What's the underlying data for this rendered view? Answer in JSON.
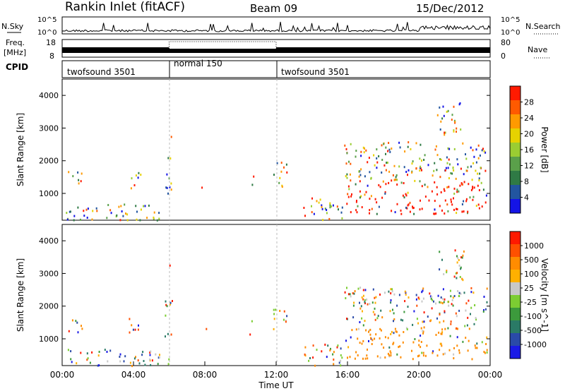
{
  "header": {
    "station": "Rankin Inlet (fitACF)",
    "beam": "Beam 09",
    "date": "15/Dec/2012"
  },
  "colors": {
    "power_scale": [
      "#1414e6",
      "#2255a0",
      "#2f7a45",
      "#5aa04a",
      "#9acd32",
      "#e6d200",
      "#ff9a00",
      "#ff5a00",
      "#ff1a00"
    ],
    "velocity_scale": [
      "#1a1ae6",
      "#2a4aa8",
      "#2a7a66",
      "#3c9a3c",
      "#7ccd32",
      "#c8c8c8",
      "#ffb000",
      "#ff8c00",
      "#ff5000",
      "#ff1a00"
    ]
  },
  "chart_data": [
    {
      "type": "line",
      "title": "N.Sky / N.Search",
      "left_label": "N.Sky",
      "right_label": "N.Search",
      "left_ticks": [
        "10^5",
        "10^0"
      ],
      "right_ticks": [
        "10^5",
        "10^0"
      ],
      "note": "Noise time series, step line near baseline with spikes"
    },
    {
      "type": "line",
      "title": "Freq / Nave",
      "left_label_1": "Freq.",
      "left_label_2": "[MHz]",
      "right_label": "Nave",
      "left_ticks": [
        "18",
        "8"
      ],
      "right_ticks": [
        "80",
        "0"
      ],
      "note": "Frequency solid band; Nave dotted during normal mode"
    },
    {
      "type": "table",
      "title": "CPID",
      "label": "CPID",
      "segments": [
        {
          "name": "twofsound 3501",
          "start_h": 0,
          "end_h": 6
        },
        {
          "name": "normal 150",
          "start_h": 6,
          "end_h": 12
        },
        {
          "name": "twofsound 3501",
          "start_h": 12,
          "end_h": 24
        }
      ]
    },
    {
      "type": "heatmap",
      "ylabel": "Slant Range [km]",
      "y_ticks": [
        1000,
        2000,
        3000,
        4000
      ],
      "ylim": [
        180,
        4500
      ],
      "xlim": [
        0,
        24
      ],
      "colorbar_label": "Power [dB]",
      "colorbar_ticks": [
        "28",
        "24",
        "20",
        "16",
        "12",
        "8",
        "4"
      ],
      "zlim": [
        0,
        32
      ]
    },
    {
      "type": "heatmap",
      "ylabel": "Slant Range [km]",
      "y_ticks": [
        1000,
        2000,
        3000,
        4000
      ],
      "ylim": [
        180,
        4500
      ],
      "xlim": [
        0,
        24
      ],
      "xlabel": "Time UT",
      "x_ticks": [
        "00:00",
        "04:00",
        "08:00",
        "12:00",
        "16:00",
        "20:00",
        "00:00"
      ],
      "colorbar_label": "Velocity [m s^-1]",
      "colorbar_ticks": [
        "1000",
        "500",
        "100",
        "25",
        "-25",
        "-100",
        "-500",
        "-1000"
      ]
    }
  ]
}
